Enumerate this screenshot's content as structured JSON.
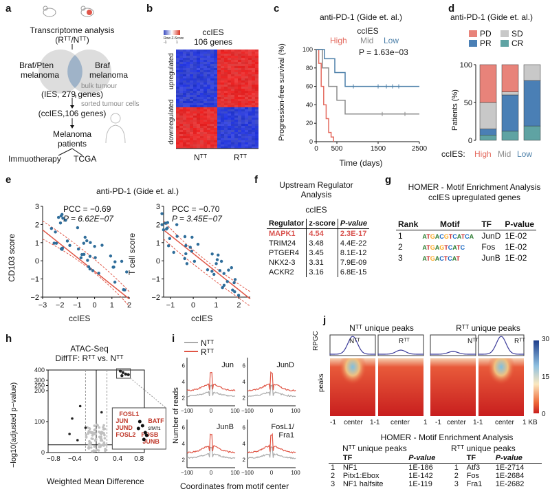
{
  "panels": {
    "a": "a",
    "b": "b",
    "c": "c",
    "d": "d",
    "e": "e",
    "f": "f",
    "g": "g",
    "h": "h",
    "i": "i",
    "j": "j"
  },
  "a": {
    "step1": "Transcriptome analysis",
    "step1b": "(Rᵀᵀ/Nᵀᵀ)",
    "venn_left": "Braf/Pten",
    "venn_left2": "melanoma",
    "venn_right": "Braf",
    "venn_right2": "melanoma",
    "bulk": "bulk tumour",
    "ies": "(IES, 279 genes)",
    "sorted": "sorted tumour cells",
    "ccies": "(ccIES,106 genes)",
    "patients1": "Melanoma",
    "patients2": "patients",
    "immuno": "Immuotherapy",
    "tcga": "TCGA"
  },
  "b": {
    "title1": "ccIES",
    "title2": "106 genes",
    "legend_label": "Row Z-Score",
    "legend_min": "-1",
    "legend_max": "1",
    "up": "upregulated",
    "down": "downregulated",
    "x_n": "Nᵀᵀ",
    "x_r": "Rᵀᵀ"
  },
  "c": {
    "title": "anti-PD-1 (Gide et. al.)",
    "legend_title": "ccIES",
    "groups": [
      "High",
      "Mid",
      "Low"
    ],
    "pval": "P = 1.63e−03",
    "ylabel": "Progression-free survival (%)",
    "xlabel": "Time (days)",
    "xticks": [
      "0",
      "500",
      "1500",
      "2500"
    ],
    "yticks": [
      "100",
      "80",
      "60",
      "40",
      "20",
      "0"
    ],
    "colors": {
      "High": "#e46a5e",
      "Mid": "#8c8c8c",
      "Low": "#4b7fa8"
    }
  },
  "d": {
    "title": "anti-PD-1 (Gide et. al.)",
    "legend": [
      "PD",
      "SD",
      "PR",
      "CR"
    ],
    "legend_colors": [
      "#e8837a",
      "#c8c8c8",
      "#4a7fb5",
      "#5fa3a3"
    ],
    "ylabel": "Patients (%)",
    "yticks": [
      "100",
      "50",
      "0"
    ],
    "xlabel_prefix": "ccIES:",
    "categories": [
      "High",
      "Mid",
      "Low"
    ],
    "cat_colors": [
      "#e46a5e",
      "#8c8c8c",
      "#4b7fa8"
    ]
  },
  "e": {
    "title": "anti-PD-1 (Gide et. al.)",
    "left": {
      "pcc": "PCC = −0.69",
      "p": "P = 6.62E−07",
      "ylabel": "CD103 score",
      "xlabel": "ccIES",
      "xticks": [
        "−3",
        "−2",
        "−1",
        "0",
        "1",
        "2"
      ],
      "yticks": [
        "3",
        "2",
        "1",
        "0",
        "−1",
        "−2"
      ]
    },
    "right": {
      "pcc": "PCC = −0.70",
      "p": "P = 3.45E−07",
      "ylabel": "T cell score",
      "xlabel": "ccIES",
      "xticks": [
        "−1",
        "0",
        "1",
        "2"
      ],
      "yticks": [
        "3",
        "2",
        "1",
        "0",
        "−1",
        "−2"
      ]
    }
  },
  "f": {
    "title1": "Upstream Regulator",
    "title2": "Analysis",
    "sub": "ccIES",
    "headers": [
      "Regulator",
      "z-score",
      "P-value"
    ],
    "rows": [
      [
        "MAPK1",
        "4.54",
        "2.3E-17"
      ],
      [
        "TRIM24",
        "3.48",
        "4.4E-22"
      ],
      [
        "PTGER4",
        "3.45",
        "8.1E-12"
      ],
      [
        "NKX2-3",
        "3.31",
        "7.9E-09"
      ],
      [
        "ACKR2",
        "3.16",
        "6.8E-15"
      ]
    ]
  },
  "g": {
    "title1": "HOMER - Motif Enrichment Analysis",
    "title2": "ccIES upregulated genes",
    "headers": [
      "Rank",
      "Motif",
      "TF",
      "P-value"
    ],
    "rows": [
      [
        "1",
        "ATGACGTCATCA",
        "JunD",
        "1E-02"
      ],
      [
        "2",
        "ATGAGTCATC",
        "Fos",
        "1E-02"
      ],
      [
        "3",
        "ATGACTCAT",
        "JunB",
        "1E-02"
      ]
    ]
  },
  "h": {
    "title1": "ATAC-Seq",
    "title2": "DiffTF: Rᵀᵀ vs. Nᵀᵀ",
    "ylabel": "−log10(adjusted p−value)",
    "xlabel": "Weighted Mean Difference",
    "yticks": [
      "400",
      "300",
      "250",
      "200",
      "100",
      "0"
    ],
    "xticks": [
      "−0.8",
      "−0.4",
      "0",
      "0.4",
      "0.8"
    ],
    "labels": [
      "FOSL1",
      "JUN",
      "JUND",
      "FOSL2",
      "BATF",
      "STAT1",
      "FOSB",
      "JUNB"
    ]
  },
  "i": {
    "legend": [
      "Nᵀᵀ",
      "Rᵀᵀ"
    ],
    "ylabel": "Number of reads",
    "xlabel": "Coordinates from motif center",
    "panels": [
      "Jun",
      "JunD",
      "JunB",
      "FosL1/",
      "Fra1"
    ],
    "xticks": [
      "−100",
      "0",
      "100"
    ],
    "yticks_top": [
      "6",
      "4",
      "2"
    ],
    "yticks_bot": [
      "6",
      "4",
      "2"
    ]
  },
  "j": {
    "title_n": "Nᵀᵀ unique peaks",
    "title_r": "Rᵀᵀ unique peaks",
    "ylab_top": "RPGC",
    "ylab_heat": "peaks",
    "col_labels": [
      "Nᵀᵀ",
      "Rᵀᵀ",
      "Nᵀᵀ",
      "Rᵀᵀ"
    ],
    "xticks": [
      "-1",
      "center",
      "1-1",
      "center",
      "1",
      "-1",
      "center",
      "1-1",
      "center",
      "1 KB"
    ],
    "colorbar": [
      "30",
      "15",
      "0"
    ],
    "homer_title": "HOMER - Motif Enrichment Analysis",
    "sub_n": "Nᵀᵀ unique peaks",
    "sub_r": "Rᵀᵀ unique peaks",
    "headers": [
      "TF",
      "P-value",
      "TF",
      "P-value"
    ],
    "rows": [
      [
        "1",
        "NF1",
        "1E-186",
        "1",
        "Atf3",
        "1E-2714"
      ],
      [
        "2",
        "Pitx1:Ebox",
        "1E-142",
        "2",
        "Fos",
        "1E-2684"
      ],
      [
        "3",
        "NF1 halfsite",
        "1E-119",
        "3",
        "Fra1",
        "1E-2682"
      ]
    ]
  }
}
